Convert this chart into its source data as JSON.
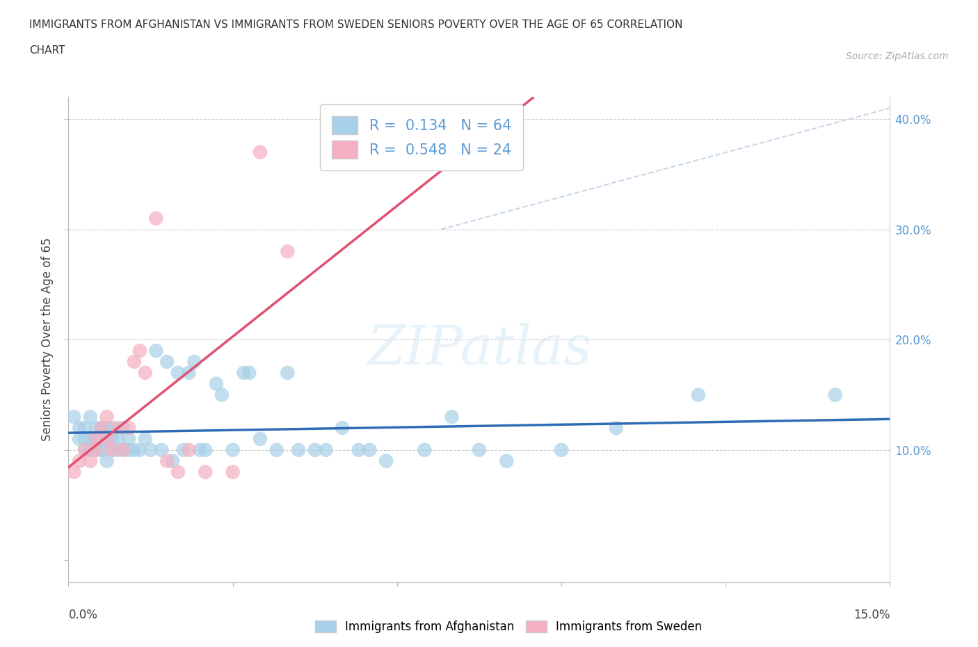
{
  "title_line1": "IMMIGRANTS FROM AFGHANISTAN VS IMMIGRANTS FROM SWEDEN SENIORS POVERTY OVER THE AGE OF 65 CORRELATION",
  "title_line2": "CHART",
  "source": "Source: ZipAtlas.com",
  "ylabel": "Seniors Poverty Over the Age of 65",
  "watermark": "ZIPatlas",
  "r_afghanistan": 0.134,
  "n_afghanistan": 64,
  "r_sweden": 0.548,
  "n_sweden": 24,
  "legend_labels": [
    "Immigrants from Afghanistan",
    "Immigrants from Sweden"
  ],
  "color_afghanistan": "#a8d0e8",
  "color_sweden": "#f4afc0",
  "trendline_color_afghanistan": "#2e6db4",
  "trendline_color_sweden": "#e05070",
  "trendline_color_dashed": "#c8d8e8",
  "xlim": [
    0.0,
    0.15
  ],
  "ylim": [
    -0.02,
    0.42
  ],
  "afghanistan_x": [
    0.001,
    0.002,
    0.002,
    0.003,
    0.003,
    0.003,
    0.004,
    0.004,
    0.004,
    0.005,
    0.005,
    0.005,
    0.006,
    0.006,
    0.006,
    0.007,
    0.007,
    0.007,
    0.008,
    0.008,
    0.008,
    0.009,
    0.009,
    0.01,
    0.01,
    0.011,
    0.011,
    0.012,
    0.013,
    0.014,
    0.015,
    0.016,
    0.017,
    0.018,
    0.019,
    0.02,
    0.021,
    0.022,
    0.023,
    0.024,
    0.025,
    0.027,
    0.028,
    0.03,
    0.032,
    0.033,
    0.035,
    0.038,
    0.04,
    0.042,
    0.045,
    0.047,
    0.05,
    0.053,
    0.055,
    0.058,
    0.065,
    0.07,
    0.075,
    0.08,
    0.09,
    0.1,
    0.115,
    0.14
  ],
  "afghanistan_y": [
    0.13,
    0.12,
    0.11,
    0.12,
    0.11,
    0.1,
    0.1,
    0.13,
    0.11,
    0.1,
    0.12,
    0.11,
    0.1,
    0.12,
    0.1,
    0.11,
    0.09,
    0.12,
    0.11,
    0.1,
    0.12,
    0.1,
    0.11,
    0.1,
    0.12,
    0.1,
    0.11,
    0.1,
    0.1,
    0.11,
    0.1,
    0.19,
    0.1,
    0.18,
    0.09,
    0.17,
    0.1,
    0.17,
    0.18,
    0.1,
    0.1,
    0.16,
    0.15,
    0.1,
    0.17,
    0.17,
    0.11,
    0.1,
    0.17,
    0.1,
    0.1,
    0.1,
    0.12,
    0.1,
    0.1,
    0.09,
    0.1,
    0.13,
    0.1,
    0.09,
    0.1,
    0.12,
    0.15,
    0.15
  ],
  "sweden_x": [
    0.001,
    0.002,
    0.003,
    0.004,
    0.005,
    0.005,
    0.006,
    0.007,
    0.007,
    0.008,
    0.009,
    0.01,
    0.011,
    0.012,
    0.013,
    0.014,
    0.016,
    0.018,
    0.02,
    0.022,
    0.025,
    0.03,
    0.035,
    0.04
  ],
  "sweden_y": [
    0.08,
    0.09,
    0.1,
    0.09,
    0.1,
    0.11,
    0.12,
    0.11,
    0.13,
    0.1,
    0.12,
    0.1,
    0.12,
    0.18,
    0.19,
    0.17,
    0.31,
    0.09,
    0.08,
    0.1,
    0.08,
    0.08,
    0.37,
    0.28
  ]
}
